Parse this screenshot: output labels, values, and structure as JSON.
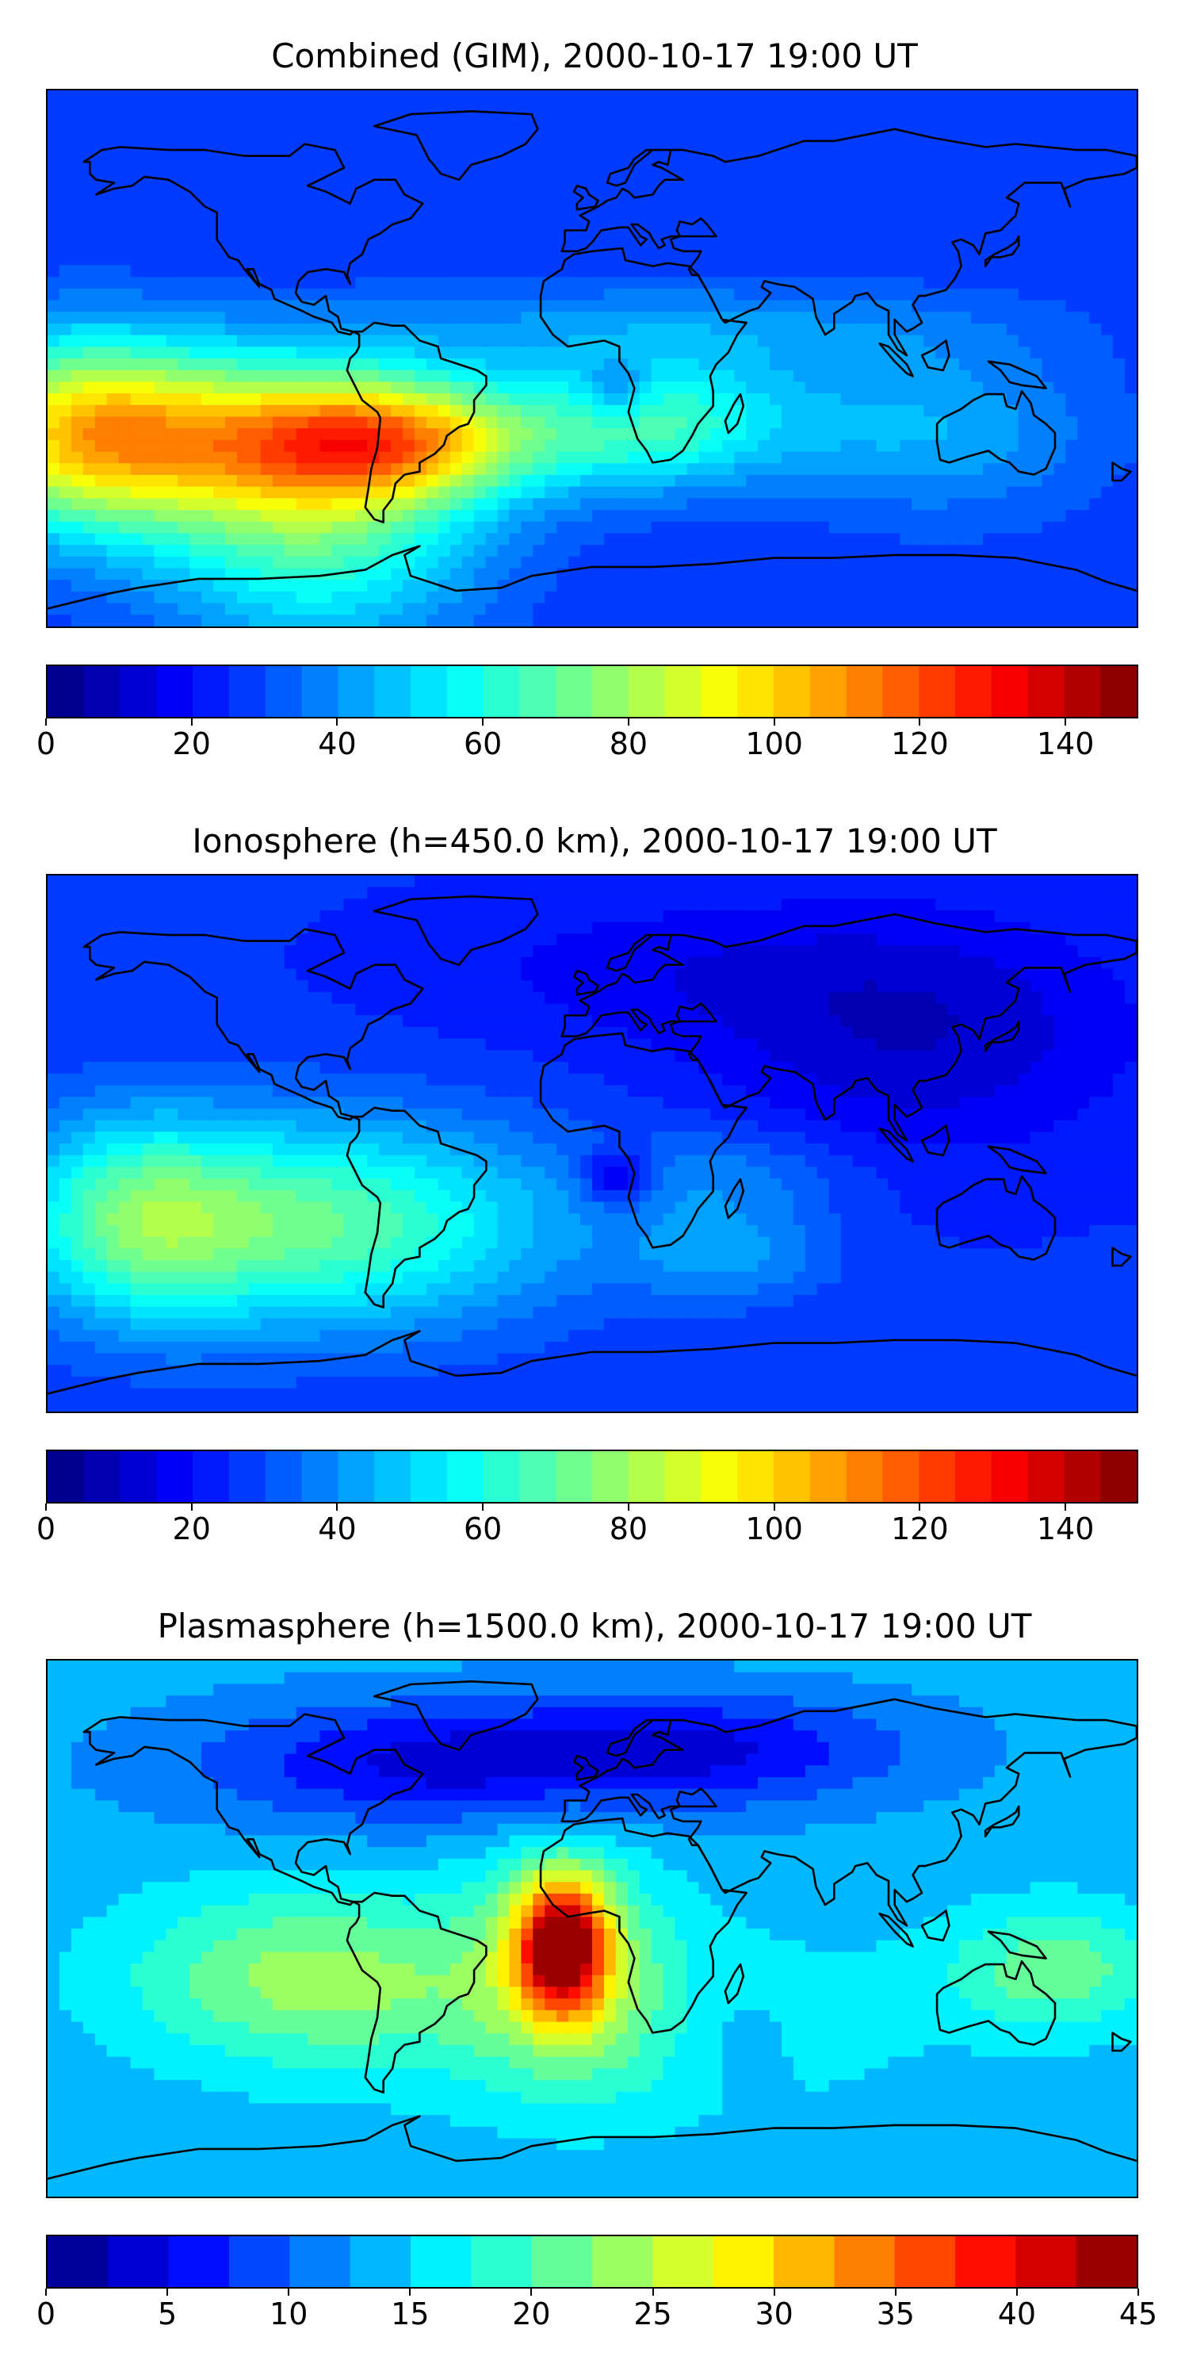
{
  "panels": [
    {
      "title": "Combined (GIM), 2000-10-17 19:00 UT",
      "colorbar": {
        "min": 0,
        "max": 150,
        "levels": 30,
        "tick_labels": [
          "0",
          "20",
          "40",
          "60",
          "80",
          "100",
          "120",
          "140"
        ]
      }
    },
    {
      "title": "Ionosphere  (h=450.0 km), 2000-10-17 19:00 UT",
      "colorbar": {
        "min": 0,
        "max": 150,
        "levels": 30,
        "tick_labels": [
          "0",
          "20",
          "40",
          "60",
          "80",
          "100",
          "120",
          "140"
        ]
      }
    },
    {
      "title": "Plasmasphere (h=1500.0 km), 2000-10-17 19:00 UT",
      "colorbar": {
        "min": 0,
        "max": 45,
        "levels": 18,
        "tick_labels": [
          "0",
          "5",
          "10",
          "15",
          "20",
          "25",
          "30",
          "35",
          "40",
          "45"
        ]
      }
    }
  ],
  "colormap": "jet",
  "colormap_colors": [
    "#00007f",
    "#0000ff",
    "#007fff",
    "#00ffff",
    "#7fff7f",
    "#ffff00",
    "#ff7f00",
    "#ff0000",
    "#7f0000"
  ],
  "coastline_color": "#000000"
}
